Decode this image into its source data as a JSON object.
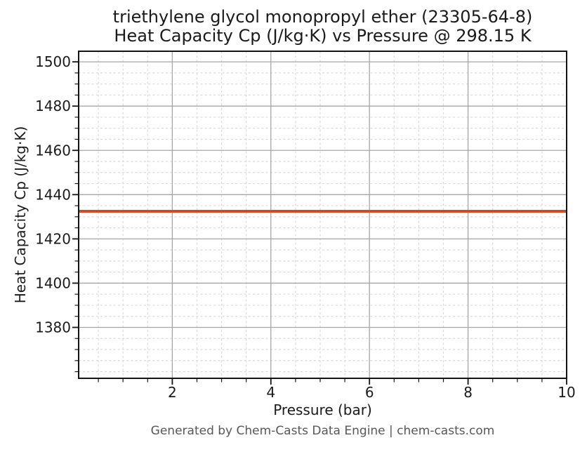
{
  "chart_data": {
    "type": "line",
    "title": "triethylene glycol monopropyl ether (23305-64-8)",
    "subtitle": "Heat Capacity Cp (J/kg·K) vs Pressure @ 298.15 K",
    "xlabel": "Pressure (bar)",
    "ylabel": "Heat Capacity Cp (J/kg·K)",
    "footer": "Generated by Chem-Casts Data Engine | chem-casts.com",
    "xlim": [
      0.1,
      10.0
    ],
    "ylim": [
      1357.0,
      1504.8
    ],
    "x_major_ticks": [
      2,
      4,
      6,
      8,
      10
    ],
    "x_minor_tick_step": 0.5,
    "y_major_ticks": [
      1380,
      1400,
      1420,
      1440,
      1460,
      1480,
      1500
    ],
    "y_minor_tick_step": 5,
    "grid": {
      "major": "solid",
      "minor": "dashed",
      "visible": true
    },
    "legend": "none",
    "series": [
      {
        "name": "Heat Capacity Cp",
        "color": "#d2492a",
        "x": [
          0.1,
          2,
          4,
          6,
          8,
          10
        ],
        "y": [
          1432.5,
          1432.5,
          1432.5,
          1432.5,
          1432.5,
          1432.5
        ]
      }
    ],
    "colors": {
      "line": "#d2492a",
      "grid_major": "#a6a6a6",
      "grid_minor": "#d9d9d9",
      "spine": "#141414",
      "title_text": "#1a1a1a",
      "footer_text": "#575757"
    }
  }
}
